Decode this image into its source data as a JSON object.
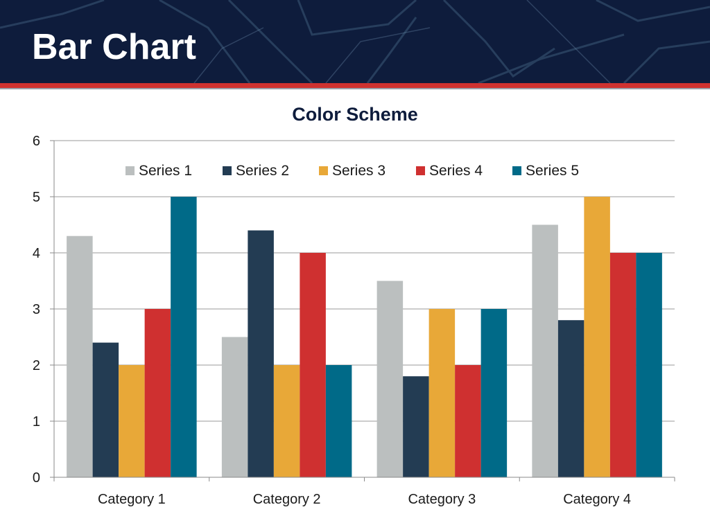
{
  "slide": {
    "title": "Bar Chart"
  },
  "colors": {
    "header_background": "#0e1c3c",
    "accent": "#cf3230",
    "series": [
      "#bbbfbf",
      "#233c53",
      "#e8a838",
      "#cf3030",
      "#006a88"
    ]
  },
  "chart_data": {
    "type": "bar",
    "title": "Color Scheme",
    "xlabel": "",
    "ylabel": "",
    "categories": [
      "Category 1",
      "Category 2",
      "Category 3",
      "Category 4"
    ],
    "series": [
      {
        "name": "Series 1",
        "values": [
          4.3,
          2.5,
          3.5,
          4.5
        ]
      },
      {
        "name": "Series 2",
        "values": [
          2.4,
          4.4,
          1.8,
          2.8
        ]
      },
      {
        "name": "Series 3",
        "values": [
          2,
          2,
          3,
          5
        ]
      },
      {
        "name": "Series 4",
        "values": [
          3,
          4,
          2,
          4
        ]
      },
      {
        "name": "Series 5",
        "values": [
          5,
          2,
          3,
          4
        ]
      }
    ],
    "ylim": [
      0,
      6
    ],
    "yticks": [
      "0",
      "1",
      "2",
      "3",
      "4",
      "5",
      "6"
    ],
    "grid": true,
    "legend_position": "top"
  }
}
